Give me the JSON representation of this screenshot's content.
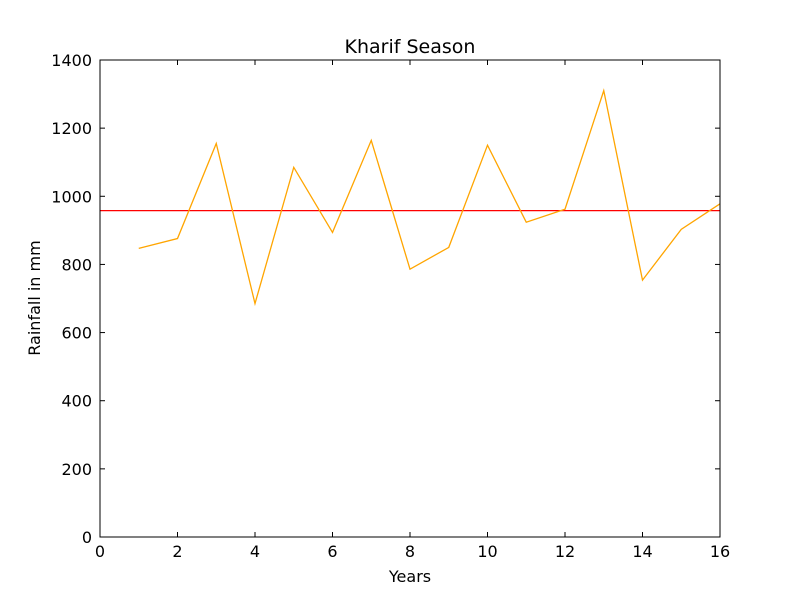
{
  "chart_data": {
    "type": "line",
    "title": "Kharif Season",
    "xlabel": "Years",
    "ylabel": "Rainfall in mm",
    "xlim": [
      0,
      16
    ],
    "ylim": [
      0,
      1400
    ],
    "xticks": [
      0,
      2,
      4,
      6,
      8,
      10,
      12,
      14,
      16
    ],
    "yticks": [
      0,
      200,
      400,
      600,
      800,
      1000,
      1200,
      1400
    ],
    "grid": false,
    "series": [
      {
        "color": "#ffa500",
        "x": [
          1,
          2,
          3,
          4,
          5,
          6,
          7,
          8,
          9,
          10,
          11,
          12,
          13,
          14,
          15,
          16
        ],
        "y": [
          847,
          876,
          1155,
          685,
          1085,
          894,
          1164,
          786,
          850,
          1150,
          924,
          962,
          1310,
          754,
          903,
          978
        ]
      }
    ],
    "reference_line": {
      "y": 958,
      "color": "#ff0000"
    }
  }
}
